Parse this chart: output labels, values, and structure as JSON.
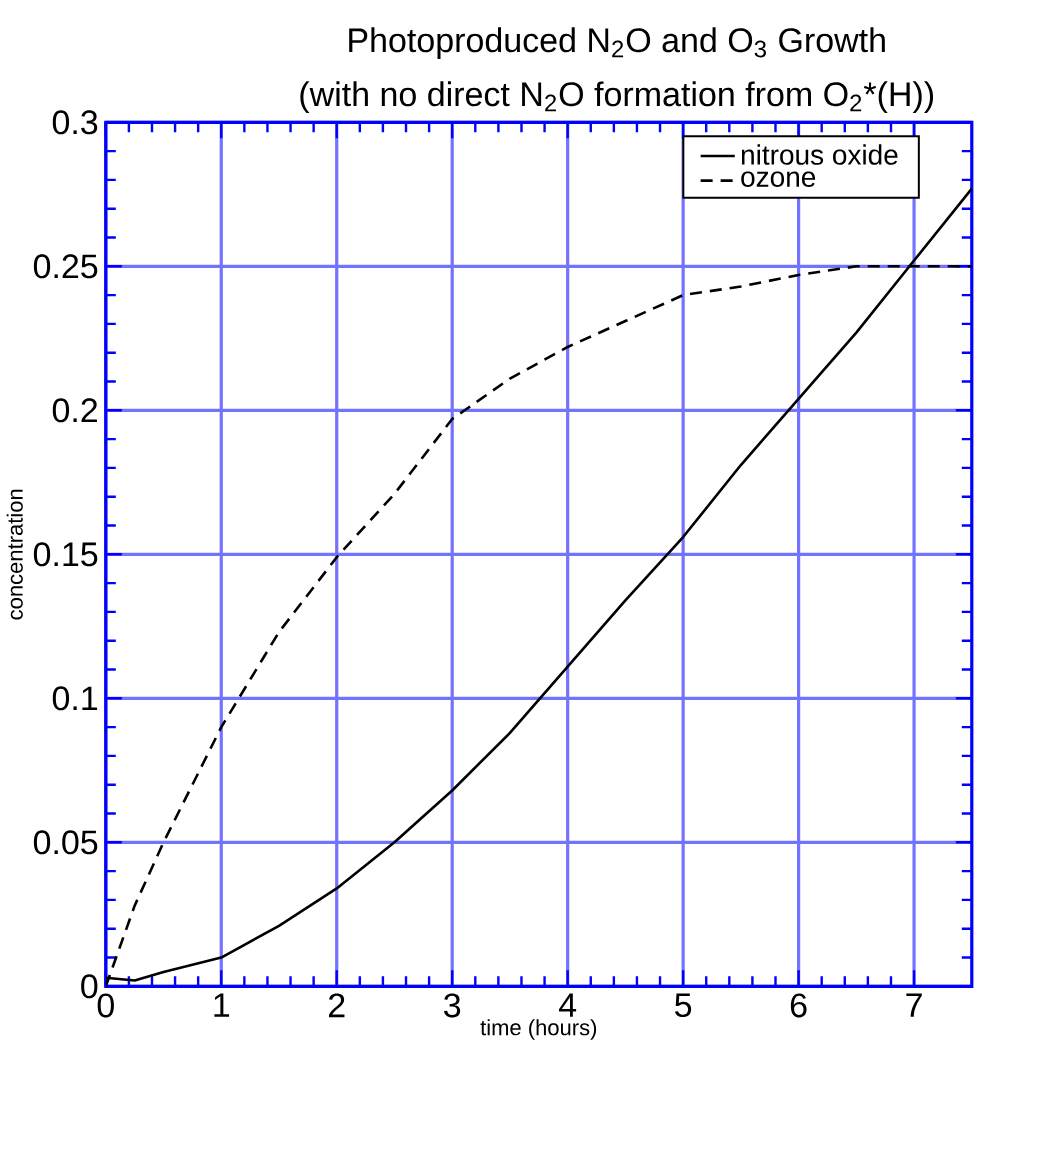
{
  "chart_data": {
    "type": "line",
    "title": "Photoproduced N$_{2}$O and O$_{3}$ Growth",
    "subtitle": "(with no direct N$_{2}$O formation from O$_{2}$*(H))",
    "xlabel": "time (hours)",
    "ylabel": "concentration",
    "x": [
      0,
      0.25,
      0.5,
      1,
      1.5,
      2,
      2.5,
      3,
      3.5,
      4,
      4.5,
      5,
      5.5,
      6,
      6.5,
      7,
      7.5
    ],
    "series": [
      {
        "name": "nitrous oxide",
        "color": "#000000",
        "line_style": "solid",
        "values": [
          0.003,
          0.002,
          0.005,
          0.01,
          0.021,
          0.034,
          0.05,
          0.068,
          0.088,
          0.111,
          0.134,
          0.156,
          0.181,
          0.204,
          0.227,
          0.252,
          0.277
        ]
      },
      {
        "name": "ozone",
        "color": "#000000",
        "line_style": "dashed",
        "values": [
          0,
          0.028,
          0.05,
          0.09,
          0.123,
          0.149,
          0.171,
          0.197,
          0.211,
          0.222,
          0.231,
          0.24,
          0.243,
          0.247,
          0.25,
          0.25,
          0.25
        ]
      }
    ],
    "xlim": [
      0,
      7.5
    ],
    "xticks": [
      0,
      1,
      2,
      3,
      4,
      5,
      6,
      7
    ],
    "ylim": [
      0,
      0.3
    ],
    "yticks": [
      0,
      0.05,
      0.1,
      0.15,
      0.2,
      0.25,
      0.3
    ],
    "grid": true,
    "legend": "top right",
    "marker": "none"
  }
}
